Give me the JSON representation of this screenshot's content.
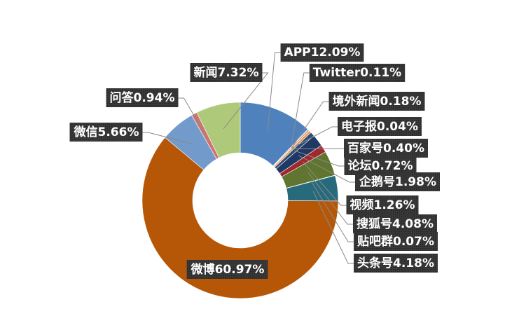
{
  "chart_data": {
    "type": "pie",
    "donut": true,
    "legend": "none",
    "slices": [
      {
        "label": "APP",
        "value": 12.09,
        "text": "APP12.09%",
        "color": "#4F81BD"
      },
      {
        "label": "Twitter",
        "value": 0.11,
        "text": "Twitter0.11%",
        "color": "#9BBB59"
      },
      {
        "label": "境外新闻",
        "value": 0.18,
        "text": "境外新闻0.18%",
        "color": "#8064A2"
      },
      {
        "label": "电子报",
        "value": 0.04,
        "text": "电子报0.04%",
        "color": "#4BACC6"
      },
      {
        "label": "百家号",
        "value": 0.4,
        "text": "百家号0.40%",
        "color": "#F79646"
      },
      {
        "label": "论坛",
        "value": 0.72,
        "text": "论坛0.72%",
        "color": "#2C4D75"
      },
      {
        "label": "企鹅号",
        "value": 1.98,
        "text": "企鹅号1.98%",
        "color": "#1F3864"
      },
      {
        "label": "视频",
        "value": 1.26,
        "text": "视频1.26%",
        "color": "#A0282F"
      },
      {
        "label": "搜狐号",
        "value": 4.08,
        "text": "搜狐号4.08%",
        "color": "#5F7530"
      },
      {
        "label": "贴吧群",
        "value": 0.07,
        "text": "贴吧群0.07%",
        "color": "#4D3B62"
      },
      {
        "label": "头条号",
        "value": 4.18,
        "text": "头条号4.18%",
        "color": "#276A7C"
      },
      {
        "label": "微博",
        "value": 60.97,
        "text": "微博60.97%",
        "color": "#B65708"
      },
      {
        "label": "微信",
        "value": 5.66,
        "text": "微信5.66%",
        "color": "#729ACA"
      },
      {
        "label": "问答",
        "value": 0.94,
        "text": "问答0.94%",
        "color": "#CD7371"
      },
      {
        "label": "新闻",
        "value": 7.32,
        "text": "新闻7.32%",
        "color": "#AFC97A"
      }
    ]
  }
}
